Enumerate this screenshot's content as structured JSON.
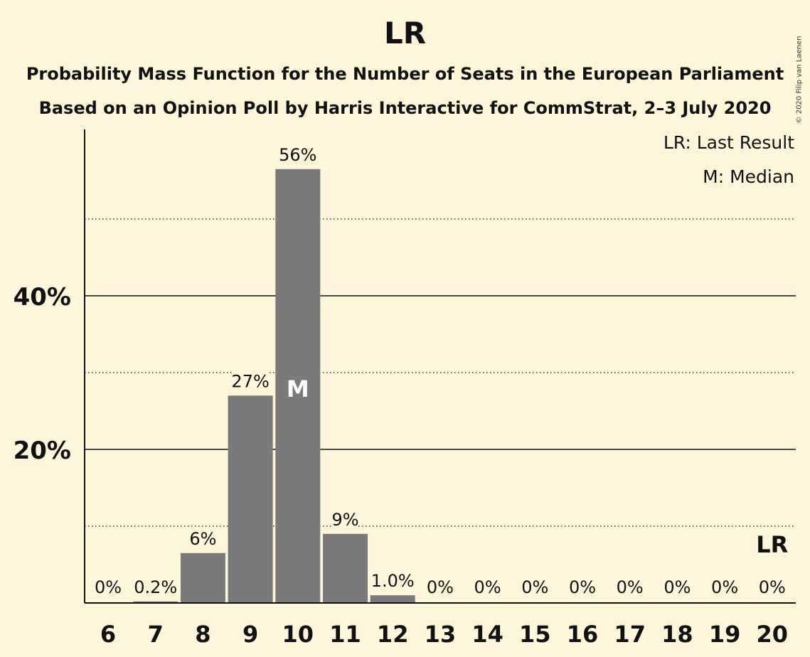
{
  "title": "LR",
  "subtitle_line1": "Probability Mass Function for the Number of Seats in the European Parliament",
  "subtitle_line2": "Based on an Opinion Poll by Harris Interactive for CommStrat, 2–3 July 2020",
  "copyright": "© 2020 Filip van Laenen",
  "legend": {
    "last_result": "LR: Last Result",
    "median": "M: Median"
  },
  "colors": {
    "background": "#fdf6db",
    "bar": "#7a7a7a",
    "text": "#111111"
  },
  "chart_data": {
    "type": "bar",
    "categories": [
      "6",
      "7",
      "8",
      "9",
      "10",
      "11",
      "12",
      "13",
      "14",
      "15",
      "16",
      "17",
      "18",
      "19",
      "20"
    ],
    "values": [
      0,
      0.2,
      6.5,
      27,
      56.5,
      9,
      1.0,
      0,
      0,
      0,
      0,
      0,
      0,
      0,
      0
    ],
    "value_labels": [
      "0%",
      "0.2%",
      "6%",
      "27%",
      "56%",
      "9%",
      "1.0%",
      "0%",
      "0%",
      "0%",
      "0%",
      "0%",
      "0%",
      "0%",
      "0%"
    ],
    "ylim": [
      0,
      61.5
    ],
    "y_ticks_major": [
      20,
      40
    ],
    "y_ticks_minor": [
      10,
      30,
      50
    ],
    "y_tick_labels": [
      "20%",
      "40%"
    ],
    "median_category": "10",
    "median_marker": "M",
    "last_result_category": "20",
    "last_result_marker": "LR",
    "legend_position": "top-right"
  }
}
